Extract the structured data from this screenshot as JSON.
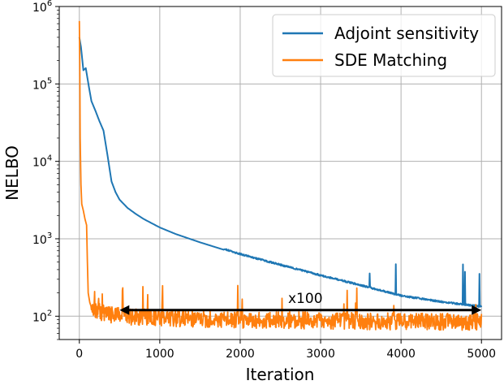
{
  "chart_data": {
    "type": "line",
    "xlabel": "Iteration",
    "ylabel": "NELBO",
    "xlim": [
      -250,
      5250
    ],
    "ylim": [
      50,
      1000000
    ],
    "yscale": "log",
    "grid": true,
    "legend_position": "top-right",
    "x_ticks": [
      0,
      1000,
      2000,
      3000,
      4000,
      5000
    ],
    "x_tick_labels": [
      "0",
      "1000",
      "2000",
      "3000",
      "4000",
      "5000"
    ],
    "y_ticks": [
      100,
      1000,
      10000,
      100000,
      1000000
    ],
    "y_tick_labels": [
      {
        "base": "10",
        "exp": "2"
      },
      {
        "base": "10",
        "exp": "3"
      },
      {
        "base": "10",
        "exp": "4"
      },
      {
        "base": "10",
        "exp": "5"
      },
      {
        "base": "10",
        "exp": "6"
      }
    ],
    "series": [
      {
        "name": "Adjoint sensitivity",
        "color": "#1f77b4",
        "x": [
          0,
          20,
          50,
          80,
          120,
          150,
          200,
          250,
          300,
          350,
          380,
          400,
          450,
          500,
          600,
          700,
          800,
          1000,
          1200,
          1500,
          2000,
          2500,
          3000,
          3500,
          4000,
          4500,
          5000
        ],
        "y": [
          400000,
          300000,
          150000,
          160000,
          90000,
          60000,
          45000,
          33000,
          25000,
          12000,
          7500,
          5500,
          4000,
          3200,
          2500,
          2100,
          1800,
          1400,
          1150,
          900,
          620,
          450,
          330,
          245,
          180,
          150,
          130
        ]
      },
      {
        "name": "SDE Matching",
        "color": "#ff7f0e",
        "x": [
          0,
          5,
          10,
          20,
          30,
          50,
          70,
          90,
          100,
          110,
          130,
          150,
          200,
          300,
          500,
          1000,
          2000,
          3000,
          4000,
          5000
        ],
        "y": [
          650000,
          200000,
          20000,
          5000,
          2800,
          2300,
          1800,
          1500,
          500,
          200,
          150,
          130,
          120,
          110,
          100,
          95,
          90,
          88,
          85,
          85
        ]
      }
    ],
    "annotations": [
      {
        "text": "x100",
        "arrow_from": [
          500,
          120
        ],
        "arrow_to": [
          5000,
          120
        ]
      }
    ]
  }
}
